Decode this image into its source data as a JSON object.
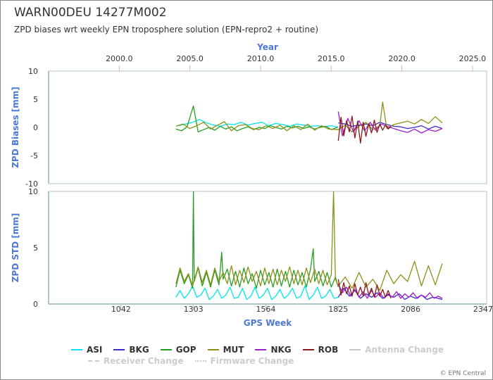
{
  "title": "WARN00DEU 14277M002",
  "subtitle": "ZPD biases wrt weekly EPN troposphere solution (EPN-repro2 + routine)",
  "credits": "© EPN Central",
  "chart_data": [
    {
      "type": "line",
      "name": "bias",
      "ylabel": "ZPD Biases [mm]",
      "ylim": [
        -10,
        10
      ],
      "yticks": [
        "10",
        "5",
        "0",
        "-5",
        "-10"
      ],
      "xlabel_top": "Year",
      "xlim_year": [
        1995.0,
        2026.0
      ],
      "year_ticks": [
        "2000.0",
        "2005.0",
        "2010.0",
        "2015.0",
        "2020.0",
        "2025.0"
      ],
      "grid": false,
      "series": [
        {
          "name": "ASI",
          "color": "#00e5ee",
          "x": [
            1250,
            1275,
            1300,
            1325,
            1350,
            1375,
            1400,
            1425,
            1450,
            1475,
            1500,
            1525,
            1550,
            1575,
            1600,
            1625,
            1650,
            1675,
            1700,
            1725,
            1750,
            1775,
            1800,
            1825
          ],
          "values": [
            0.3,
            0.6,
            0.9,
            1.4,
            0.8,
            0.4,
            0.2,
            0.6,
            0.5,
            0.9,
            0.4,
            0.7,
            0.9,
            0.3,
            0.7,
            0.5,
            0.2,
            0.6,
            0.4,
            0.2,
            0.3,
            0.1,
            0.3,
            0.0
          ]
        },
        {
          "name": "BKG",
          "color": "#3b2ccc",
          "x": [
            1825,
            1850,
            1875,
            1900,
            1925,
            1950,
            1975,
            2000,
            2025,
            2050,
            2075,
            2100,
            2125,
            2150,
            2175,
            2200
          ],
          "values": [
            0.8,
            0.6,
            0.2,
            0.4,
            0.6,
            0.3,
            0.9,
            0.5,
            0.2,
            0.1,
            -0.2,
            0.0,
            0.3,
            -0.3,
            0.2,
            -0.2
          ]
        },
        {
          "name": "GOP",
          "color": "#22a022",
          "x": [
            1240,
            1260,
            1280,
            1303,
            1320,
            1340,
            1360,
            1380,
            1400,
            1420,
            1440,
            1460,
            1480,
            1500,
            1520,
            1540,
            1560,
            1580,
            1600,
            1620,
            1640,
            1660,
            1680,
            1700,
            1720,
            1740,
            1760,
            1780,
            1800,
            1825
          ],
          "values": [
            -0.3,
            -0.6,
            0.1,
            3.8,
            -0.8,
            -0.4,
            0.0,
            -0.5,
            0.2,
            -0.3,
            0.1,
            -0.6,
            -0.2,
            0.1,
            -0.4,
            0.0,
            -0.2,
            0.3,
            0.0,
            -0.3,
            0.2,
            -0.1,
            0.2,
            -0.2,
            0.1,
            -0.3,
            0.0,
            0.2,
            -0.4,
            0.1
          ]
        },
        {
          "name": "MUT",
          "color": "#8f8f17",
          "x": [
            1240,
            1265,
            1290,
            1315,
            1340,
            1365,
            1390,
            1415,
            1440,
            1465,
            1490,
            1515,
            1540,
            1565,
            1590,
            1615,
            1640,
            1665,
            1690,
            1715,
            1740,
            1765,
            1790,
            1825,
            1850,
            1875,
            1900,
            1925,
            1950,
            1975,
            1985,
            2000,
            2025,
            2050,
            2075,
            2100,
            2125,
            2150,
            2175,
            2200
          ],
          "values": [
            0.2,
            0.6,
            -0.2,
            0.3,
            0.9,
            -0.3,
            0.4,
            1.0,
            -0.6,
            0.3,
            0.5,
            -0.2,
            -0.4,
            0.3,
            -0.2,
            0.4,
            -0.6,
            0.3,
            -0.4,
            0.6,
            -0.5,
            0.3,
            -0.3,
            -0.4,
            0.4,
            -0.8,
            0.2,
            0.9,
            -0.4,
            0.3,
            4.5,
            -0.2,
            0.5,
            0.8,
            1.1,
            0.6,
            1.4,
            0.7,
            1.9,
            0.8
          ]
        },
        {
          "name": "NKG",
          "color": "#a21ccc",
          "x": [
            1825,
            1840,
            1860,
            1880,
            1900,
            1920,
            1940,
            1960,
            1980,
            2000,
            2025,
            2050,
            2075,
            2100,
            2125,
            2150,
            2175,
            2200
          ],
          "values": [
            2.8,
            -1.5,
            1.6,
            -0.8,
            1.2,
            -0.6,
            0.9,
            -0.5,
            0.6,
            0.2,
            -0.2,
            -0.6,
            -0.9,
            -0.3,
            -1.0,
            -0.4,
            -0.7,
            -0.2
          ]
        },
        {
          "name": "ROB",
          "color": "#8b1a1a",
          "x": [
            1825,
            1835,
            1845,
            1855,
            1865,
            1875,
            1885,
            1895,
            1905,
            1915,
            1925,
            1935,
            1945,
            1955,
            1965,
            1975,
            1985,
            1995,
            2005,
            2015
          ],
          "values": [
            -2.4,
            1.8,
            -1.5,
            1.2,
            -0.8,
            2.0,
            -1.9,
            1.1,
            -2.8,
            0.9,
            -1.6,
            0.7,
            -1.0,
            1.3,
            -0.9,
            0.6,
            -0.5,
            0.4,
            -0.3,
            0.2
          ]
        }
      ]
    },
    {
      "type": "line",
      "name": "std",
      "ylabel": "ZPD STD [mm]",
      "xlabel": "GPS Week",
      "ylim": [
        0,
        10
      ],
      "yticks": [
        "10",
        "5",
        "0"
      ],
      "xlim": [
        781,
        2360
      ],
      "xticks": [
        "1042",
        "1303",
        "1564",
        "1825",
        "2086",
        "2347"
      ],
      "grid": false,
      "series": [
        {
          "name": "ASI",
          "color": "#00e5ee",
          "x": [
            1240,
            1255,
            1270,
            1285,
            1300,
            1315,
            1330,
            1345,
            1360,
            1375,
            1390,
            1405,
            1420,
            1435,
            1450,
            1465,
            1480,
            1495,
            1510,
            1525,
            1540,
            1555,
            1570,
            1585,
            1600,
            1615,
            1630,
            1645,
            1660,
            1675,
            1690,
            1705,
            1720,
            1735,
            1750,
            1765,
            1780,
            1795,
            1810,
            1825
          ],
          "values": [
            0.6,
            1.2,
            0.5,
            0.9,
            1.6,
            0.6,
            0.8,
            1.4,
            0.4,
            0.7,
            1.3,
            0.5,
            0.8,
            1.5,
            0.5,
            0.6,
            1.4,
            0.4,
            0.7,
            1.5,
            0.5,
            0.8,
            1.4,
            0.4,
            0.7,
            1.3,
            0.5,
            0.8,
            1.4,
            0.5,
            0.7,
            1.6,
            0.4,
            0.8,
            1.5,
            0.5,
            0.7,
            1.3,
            0.5,
            0.6
          ]
        },
        {
          "name": "BKG",
          "color": "#3b2ccc",
          "x": [
            1825,
            1845,
            1865,
            1885,
            1905,
            1925,
            1945,
            1965,
            1985,
            2005,
            2025,
            2045,
            2065,
            2085,
            2105,
            2125,
            2145,
            2165,
            2185,
            2200
          ],
          "values": [
            0.6,
            1.4,
            0.7,
            1.2,
            0.5,
            0.9,
            0.6,
            1.0,
            0.5,
            0.8,
            0.6,
            0.9,
            0.4,
            0.7,
            0.5,
            0.8,
            0.4,
            0.6,
            0.5,
            0.4
          ]
        },
        {
          "name": "GOP",
          "color": "#22a022",
          "x": [
            1240,
            1255,
            1270,
            1285,
            1300,
            1303,
            1306,
            1320,
            1335,
            1350,
            1365,
            1380,
            1395,
            1405,
            1410,
            1425,
            1440,
            1455,
            1470,
            1485,
            1500,
            1515,
            1530,
            1545,
            1560,
            1575,
            1590,
            1605,
            1620,
            1635,
            1650,
            1665,
            1680,
            1695,
            1710,
            1725,
            1735,
            1740,
            1755,
            1770,
            1785,
            1800,
            1815,
            1825
          ],
          "values": [
            1.5,
            3.0,
            1.8,
            2.6,
            1.4,
            10.0,
            2.0,
            3.2,
            1.6,
            2.8,
            1.5,
            3.0,
            1.7,
            4.6,
            2.2,
            3.1,
            1.6,
            2.9,
            1.5,
            3.2,
            1.8,
            2.7,
            1.4,
            3.0,
            1.7,
            2.8,
            1.5,
            3.1,
            1.6,
            2.9,
            1.5,
            3.0,
            1.7,
            2.8,
            1.5,
            3.1,
            4.9,
            2.0,
            2.9,
            1.6,
            2.8,
            1.5,
            2.4,
            1.5
          ]
        },
        {
          "name": "MUT",
          "color": "#8f8f17",
          "x": [
            1240,
            1255,
            1270,
            1285,
            1300,
            1320,
            1335,
            1350,
            1365,
            1380,
            1395,
            1410,
            1425,
            1440,
            1455,
            1470,
            1485,
            1500,
            1515,
            1530,
            1545,
            1560,
            1575,
            1590,
            1605,
            1620,
            1635,
            1650,
            1665,
            1680,
            1695,
            1710,
            1725,
            1740,
            1755,
            1770,
            1785,
            1800,
            1808,
            1815,
            1825,
            1850,
            1875,
            1900,
            1925,
            1950,
            1975,
            2000,
            2025,
            2050,
            2075,
            2100,
            2125,
            2150,
            2175,
            2200
          ],
          "values": [
            1.8,
            3.2,
            2.0,
            2.7,
            1.6,
            3.3,
            1.9,
            3.0,
            1.7,
            3.2,
            2.0,
            2.8,
            1.8,
            3.4,
            1.7,
            3.0,
            1.9,
            3.3,
            2.0,
            2.9,
            1.6,
            3.2,
            1.8,
            3.1,
            1.7,
            3.0,
            2.0,
            3.3,
            1.8,
            3.0,
            1.7,
            3.2,
            1.9,
            3.1,
            1.8,
            3.0,
            1.7,
            2.6,
            10.0,
            2.2,
            1.6,
            2.4,
            1.4,
            2.8,
            1.5,
            2.2,
            1.2,
            3.0,
            1.8,
            2.6,
            2.0,
            3.8,
            1.6,
            3.4,
            1.7,
            3.6
          ]
        },
        {
          "name": "NKG",
          "color": "#a21ccc",
          "x": [
            1825,
            1840,
            1855,
            1870,
            1885,
            1900,
            1915,
            1930,
            1945,
            1960,
            1975,
            1990,
            2005,
            2020,
            2035,
            2050,
            2065,
            2080,
            2095,
            2110,
            2125,
            2140,
            2155,
            2170,
            2185,
            2200
          ],
          "values": [
            1.8,
            1.0,
            1.5,
            0.7,
            1.3,
            0.6,
            1.1,
            0.5,
            1.2,
            0.6,
            1.0,
            0.5,
            0.9,
            0.6,
            1.1,
            0.5,
            0.9,
            0.6,
            1.0,
            0.5,
            0.8,
            0.6,
            1.0,
            0.5,
            0.7,
            0.5
          ]
        },
        {
          "name": "ROB",
          "color": "#8b1a1a",
          "x": [
            1825,
            1835,
            1845,
            1855,
            1865,
            1875,
            1885,
            1895,
            1905,
            1915,
            1925,
            1935,
            1945,
            1955,
            1965,
            1975,
            1985,
            1995,
            2005,
            2015
          ],
          "values": [
            2.2,
            0.8,
            1.9,
            0.9,
            1.6,
            0.7,
            1.8,
            0.8,
            1.5,
            0.7,
            1.9,
            0.8,
            1.4,
            0.6,
            1.7,
            0.7,
            1.3,
            0.6,
            1.2,
            0.5
          ]
        }
      ]
    }
  ],
  "legend": {
    "items": [
      {
        "label": "ASI",
        "color": "#00e5ee",
        "visible": true,
        "style": "solid"
      },
      {
        "label": "BKG",
        "color": "#3b2ccc",
        "visible": true,
        "style": "solid"
      },
      {
        "label": "GOP",
        "color": "#22a022",
        "visible": true,
        "style": "solid"
      },
      {
        "label": "MUT",
        "color": "#8f8f17",
        "visible": true,
        "style": "solid"
      },
      {
        "label": "NKG",
        "color": "#a21ccc",
        "visible": true,
        "style": "solid"
      },
      {
        "label": "ROB",
        "color": "#8b1a1a",
        "visible": true,
        "style": "solid"
      },
      {
        "label": "Antenna Change",
        "color": "#cccccc",
        "visible": false,
        "style": "solid"
      },
      {
        "label": "Receiver Change",
        "color": "#cccccc",
        "visible": false,
        "style": "dashed"
      },
      {
        "label": "Firmware Change",
        "color": "#cccccc",
        "visible": false,
        "style": "dotted"
      }
    ]
  }
}
